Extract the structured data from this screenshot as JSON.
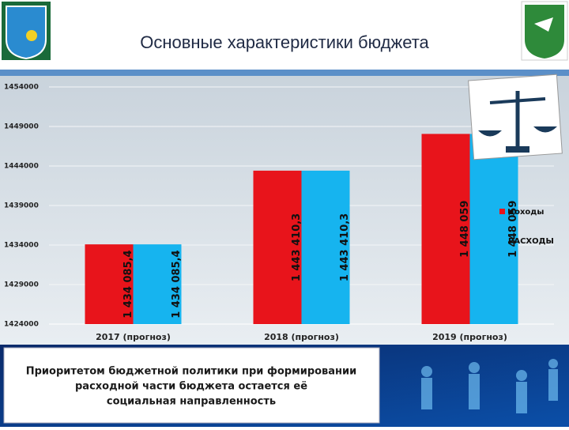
{
  "chart_data": {
    "type": "bar",
    "title": "Основные характеристики бюджета",
    "categories": [
      "2017 (прогноз)",
      "2018 (прогноз)",
      "2019 (прогноз)"
    ],
    "series": [
      {
        "name": "доходы",
        "color": "#e8141b",
        "values": [
          1434085.4,
          1443410.3,
          1448059
        ],
        "value_labels": [
          "1 434 085,4",
          "1 443 410,3",
          "1 448 059"
        ]
      },
      {
        "name": "РАСХОДЫ",
        "color": "#16b4ef",
        "values": [
          1434085.4,
          1443410.3,
          1448059
        ],
        "value_labels": [
          "1 434 085,4",
          "1 443 410,3",
          "1 448 059"
        ]
      }
    ],
    "ylim": [
      1424000,
      1454000
    ],
    "yticks": [
      1424000,
      1429000,
      1434000,
      1439000,
      1444000,
      1449000,
      1454000
    ],
    "grid": true,
    "legend": "right"
  },
  "footer": {
    "lines": [
      "Приоритетом бюджетной политики при формировании",
      "расходной части  бюджета остается её",
      "социальная направленность"
    ]
  }
}
